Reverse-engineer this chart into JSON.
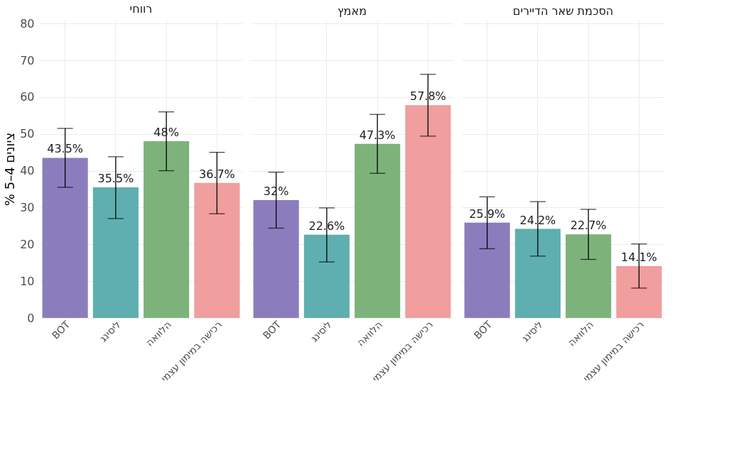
{
  "chart_data": [
    {
      "type": "bar",
      "title": "רווחי",
      "ylabel": "% 5–4 ציונים",
      "categories": [
        "BOT",
        "ליסינג",
        "הלוואה",
        "רכישה במימון עצמי"
      ],
      "values": [
        43.5,
        35.5,
        48,
        36.7
      ],
      "colors": [
        "#8b7dbd",
        "#5fafb0",
        "#7db37b",
        "#f09e9e"
      ],
      "errors": [
        [
          35.5,
          51.5
        ],
        [
          27,
          43.8
        ],
        [
          40,
          56
        ],
        [
          28.3,
          45
        ]
      ],
      "value_labels": [
        "43.5%",
        "35.5%",
        "48%",
        "36.7%"
      ],
      "ylim": [
        0,
        81
      ],
      "yticks": [
        0,
        10,
        20,
        30,
        40,
        50,
        60,
        70,
        80
      ],
      "grid": true
    },
    {
      "type": "bar",
      "title": "מאמץ",
      "categories": [
        "BOT",
        "ליסינג",
        "הלוואה",
        "רכישה במימון עצמי"
      ],
      "values": [
        32,
        22.6,
        47.3,
        57.8
      ],
      "colors": [
        "#8b7dbd",
        "#5fafb0",
        "#7db37b",
        "#f09e9e"
      ],
      "errors": [
        [
          24.4,
          39.6
        ],
        [
          15.2,
          29.9
        ],
        [
          39.3,
          55.3
        ],
        [
          49.4,
          66.2
        ]
      ],
      "value_labels": [
        "32%",
        "22.6%",
        "47.3%",
        "57.8%"
      ],
      "ylim": [
        0,
        81
      ],
      "yticks": [
        0,
        10,
        20,
        30,
        40,
        50,
        60,
        70,
        80
      ],
      "grid": true,
      "tick_labels": "x"
    },
    {
      "type": "bar",
      "title": "הסכמת שאר הדיירים",
      "categories": [
        "BOT",
        "ליסינג",
        "הלוואה",
        "רכישה במימון עצמי"
      ],
      "values": [
        25.9,
        24.2,
        22.7,
        14.1
      ],
      "colors": [
        "#8b7dbd",
        "#5fafb0",
        "#7db37b",
        "#f09e9e"
      ],
      "errors": [
        [
          18.8,
          32.9
        ],
        [
          16.8,
          31.6
        ],
        [
          15.9,
          29.5
        ],
        [
          8.1,
          20.1
        ]
      ],
      "value_labels": [
        "25.9%",
        "24.2%",
        "22.7%",
        "14.1%"
      ],
      "ylim": [
        0,
        81
      ],
      "yticks": [
        0,
        10,
        20,
        30,
        40,
        50,
        60,
        70,
        80
      ],
      "grid": true,
      "tick_labels": "x"
    }
  ]
}
